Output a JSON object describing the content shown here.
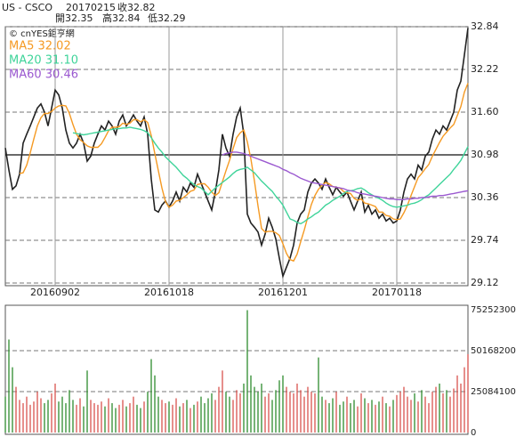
{
  "chart_data": [
    {
      "type": "line",
      "annotations": [
        "US - CSCO",
        "20170215",
        "收32.82",
        "開32.35",
        "高32.84",
        "低32.29"
      ],
      "source": "© cnYES鉅亨網",
      "categories": [
        null,
        null,
        null,
        null,
        null,
        null,
        null,
        null,
        null,
        null,
        null,
        null,
        null,
        null,
        "20160902",
        null,
        null,
        null,
        null,
        null,
        null,
        null,
        null,
        null,
        null,
        null,
        null,
        null,
        null,
        null,
        null,
        null,
        null,
        null,
        null,
        null,
        null,
        null,
        null,
        null,
        null,
        null,
        null,
        null,
        null,
        null,
        "20161018",
        null,
        null,
        null,
        null,
        null,
        null,
        null,
        null,
        null,
        null,
        null,
        null,
        null,
        null,
        null,
        null,
        null,
        null,
        null,
        null,
        null,
        null,
        null,
        null,
        null,
        null,
        null,
        null,
        null,
        null,
        null,
        "20161201",
        null,
        null,
        null,
        null,
        null,
        null,
        null,
        null,
        null,
        null,
        null,
        null,
        null,
        null,
        null,
        null,
        null,
        null,
        null,
        null,
        null,
        null,
        null,
        null,
        null,
        null,
        null,
        null,
        null,
        null,
        null,
        "20170118",
        null,
        null,
        null,
        null,
        null,
        null,
        null,
        null,
        null,
        null,
        null,
        null,
        null,
        null,
        null,
        null,
        null,
        null,
        null,
        null
      ],
      "series": [
        {
          "color": "#222222",
          "values": [
            31.08,
            30.76,
            30.48,
            30.53,
            30.7,
            31.15,
            31.28,
            31.4,
            31.53,
            31.66,
            31.72,
            31.6,
            31.4,
            31.66,
            31.92,
            31.85,
            31.66,
            31.34,
            31.15,
            31.08,
            31.15,
            31.28,
            31.15,
            30.89,
            30.96,
            31.15,
            31.28,
            31.4,
            31.34,
            31.47,
            31.4,
            31.28,
            31.47,
            31.56,
            31.4,
            31.47,
            31.56,
            31.47,
            31.4,
            31.53,
            31.28,
            30.63,
            30.18,
            30.15,
            30.25,
            30.31,
            30.22,
            30.31,
            30.44,
            30.31,
            30.51,
            30.44,
            30.57,
            30.51,
            30.7,
            30.57,
            30.44,
            30.31,
            30.18,
            30.44,
            30.76,
            31.28,
            31.08,
            30.96,
            31.28,
            31.53,
            31.66,
            31.28,
            30.12,
            29.99,
            29.93,
            29.86,
            29.67,
            29.83,
            30.06,
            29.93,
            29.76,
            29.48,
            29.22,
            29.35,
            29.48,
            29.67,
            29.99,
            30.12,
            30.18,
            30.44,
            30.57,
            30.63,
            30.57,
            30.48,
            30.63,
            30.51,
            30.4,
            30.51,
            30.44,
            30.38,
            30.44,
            30.31,
            30.18,
            30.31,
            30.44,
            30.15,
            30.25,
            30.12,
            30.18,
            30.06,
            30.12,
            30.02,
            30.06,
            29.99,
            30.02,
            30.18,
            30.44,
            30.63,
            30.7,
            30.63,
            30.83,
            30.76,
            30.96,
            31.02,
            31.21,
            31.34,
            31.28,
            31.4,
            31.34,
            31.47,
            31.6,
            31.92,
            32.05,
            32.43,
            32.82
          ]
        },
        {
          "name": "MA5 32.02",
          "color": "#f59a23",
          "values": [
            null,
            null,
            null,
            null,
            30.71,
            30.72,
            30.83,
            31.01,
            31.21,
            31.4,
            31.52,
            31.58,
            31.58,
            31.61,
            31.66,
            31.69,
            31.7,
            31.69,
            31.58,
            31.42,
            31.28,
            31.2,
            31.16,
            31.11,
            31.09,
            31.09,
            31.09,
            31.14,
            31.23,
            31.33,
            31.38,
            31.38,
            31.39,
            31.44,
            31.42,
            31.44,
            31.49,
            31.49,
            31.46,
            31.49,
            31.45,
            31.26,
            31.0,
            30.75,
            30.5,
            30.3,
            30.22,
            30.25,
            30.31,
            30.32,
            30.36,
            30.4,
            30.45,
            30.47,
            30.55,
            30.56,
            30.56,
            30.51,
            30.44,
            30.39,
            30.43,
            30.59,
            30.75,
            30.9,
            31.07,
            31.23,
            31.3,
            31.34,
            31.17,
            30.92,
            30.6,
            30.24,
            29.91,
            29.86,
            29.87,
            29.87,
            29.85,
            29.81,
            29.69,
            29.55,
            29.46,
            29.44,
            29.54,
            29.72,
            29.89,
            30.08,
            30.26,
            30.39,
            30.48,
            30.54,
            30.58,
            30.56,
            30.52,
            30.51,
            30.5,
            30.45,
            30.43,
            30.42,
            30.35,
            30.32,
            30.34,
            30.28,
            30.27,
            30.25,
            30.23,
            30.15,
            30.15,
            30.1,
            30.09,
            30.05,
            30.04,
            30.05,
            30.14,
            30.25,
            30.39,
            30.52,
            30.65,
            30.71,
            30.78,
            30.84,
            30.96,
            31.06,
            31.16,
            31.25,
            31.31,
            31.37,
            31.42,
            31.55,
            31.68,
            31.89,
            32.02
          ]
        },
        {
          "name": "MA20 31.10",
          "color": "#3fd49a",
          "values": [
            null,
            null,
            null,
            null,
            null,
            null,
            null,
            null,
            null,
            null,
            null,
            null,
            null,
            null,
            null,
            null,
            null,
            null,
            null,
            31.3,
            31.29,
            31.28,
            31.27,
            31.28,
            31.29,
            31.3,
            31.31,
            31.32,
            31.33,
            31.34,
            31.35,
            31.36,
            31.36,
            31.37,
            31.37,
            31.38,
            31.37,
            31.36,
            31.35,
            31.33,
            31.3,
            31.23,
            31.15,
            31.08,
            31.02,
            30.95,
            30.9,
            30.85,
            30.8,
            30.74,
            30.68,
            30.64,
            30.59,
            30.55,
            30.52,
            30.5,
            30.45,
            30.4,
            30.45,
            30.5,
            30.54,
            30.58,
            30.62,
            30.66,
            30.71,
            30.75,
            30.77,
            30.78,
            30.8,
            30.76,
            30.72,
            30.66,
            30.6,
            30.55,
            30.5,
            30.45,
            30.38,
            30.32,
            30.25,
            30.15,
            30.05,
            30.03,
            30.0,
            29.98,
            30.01,
            30.05,
            30.08,
            30.12,
            30.15,
            30.2,
            30.25,
            30.28,
            30.32,
            30.35,
            30.38,
            30.42,
            30.45,
            30.46,
            30.47,
            30.49,
            30.5,
            30.47,
            30.43,
            30.4,
            30.37,
            30.35,
            30.32,
            30.28,
            30.25,
            30.23,
            30.22,
            30.23,
            30.24,
            30.25,
            30.27,
            30.28,
            30.3,
            30.33,
            30.37,
            30.4,
            30.45,
            30.5,
            30.55,
            30.6,
            30.65,
            30.7,
            30.77,
            30.83,
            30.9,
            31.0,
            31.1
          ]
        },
        {
          "name": "MA60 30.46",
          "color": "#9b59d0",
          "values": [
            null,
            null,
            null,
            null,
            null,
            null,
            null,
            null,
            null,
            null,
            null,
            null,
            null,
            null,
            null,
            null,
            null,
            null,
            null,
            null,
            null,
            null,
            null,
            null,
            null,
            null,
            null,
            null,
            null,
            null,
            null,
            null,
            null,
            null,
            null,
            null,
            null,
            null,
            null,
            null,
            null,
            null,
            null,
            null,
            null,
            null,
            null,
            null,
            null,
            null,
            null,
            null,
            null,
            null,
            null,
            null,
            null,
            null,
            null,
            null,
            null,
            30.98,
            31.0,
            31.01,
            31.02,
            31.02,
            31.01,
            31.0,
            30.98,
            30.96,
            30.94,
            30.92,
            30.9,
            30.88,
            30.86,
            30.84,
            30.82,
            30.8,
            30.77,
            30.75,
            30.72,
            30.7,
            30.67,
            30.64,
            30.62,
            30.6,
            30.58,
            30.57,
            30.56,
            30.55,
            30.54,
            30.53,
            30.52,
            30.51,
            30.5,
            30.49,
            30.47,
            30.46,
            30.45,
            30.43,
            30.42,
            30.41,
            30.4,
            30.39,
            30.38,
            30.37,
            30.36,
            30.35,
            30.34,
            30.34,
            30.33,
            30.33,
            30.33,
            30.34,
            30.34,
            30.35,
            30.35,
            30.36,
            30.36,
            30.37,
            30.38,
            30.38,
            30.39,
            30.39,
            30.4,
            30.41,
            30.42,
            30.43,
            30.44,
            30.45,
            30.46
          ]
        }
      ],
      "ylim": [
        29.12,
        32.84
      ],
      "yticks": [
        29.12,
        29.74,
        30.36,
        30.98,
        {
          "value": 31.6,
          "label": "31.60"
        },
        32.22,
        32.84
      ],
      "ref_line": 30.98,
      "grid": true
    },
    {
      "type": "bar",
      "values": [
        22000000,
        57000000,
        40000000,
        28000000,
        20000000,
        18000000,
        22000000,
        17000000,
        19000000,
        25000000,
        21000000,
        18000000,
        20000000,
        24000000,
        30000000,
        19000000,
        22000000,
        18000000,
        26000000,
        20000000,
        17000000,
        21000000,
        16000000,
        38000000,
        20000000,
        18000000,
        17000000,
        19000000,
        16000000,
        21000000,
        18000000,
        15000000,
        17000000,
        20000000,
        16000000,
        18000000,
        22000000,
        17000000,
        15000000,
        19000000,
        25000000,
        45000000,
        35000000,
        22000000,
        20000000,
        18000000,
        19000000,
        17000000,
        21000000,
        16000000,
        18000000,
        20000000,
        15000000,
        17000000,
        19000000,
        22000000,
        18000000,
        21000000,
        24000000,
        20000000,
        28000000,
        38000000,
        25000000,
        22000000,
        20000000,
        26000000,
        24000000,
        30000000,
        75000000,
        35000000,
        28000000,
        25000000,
        30000000,
        22000000,
        24000000,
        20000000,
        26000000,
        32000000,
        35000000,
        28000000,
        25000000,
        24000000,
        30000000,
        26000000,
        22000000,
        28000000,
        25000000,
        24000000,
        46000000,
        22000000,
        20000000,
        18000000,
        21000000,
        25000000,
        17000000,
        19000000,
        22000000,
        18000000,
        20000000,
        16000000,
        24000000,
        21000000,
        18000000,
        20000000,
        17000000,
        19000000,
        22000000,
        18000000,
        16000000,
        20000000,
        23000000,
        25000000,
        28000000,
        22000000,
        20000000,
        24000000,
        19000000,
        26000000,
        22000000,
        18000000,
        25000000,
        28000000,
        30000000,
        24000000,
        26000000,
        22000000,
        27000000,
        35000000,
        30000000,
        40000000,
        48000000
      ],
      "up_color": "#d9534f",
      "down_color": "#2e8b2e",
      "ylim": [
        0,
        75252300
      ],
      "yticks": [
        0,
        25084100,
        50168200,
        75252300
      ],
      "grid": true
    }
  ]
}
